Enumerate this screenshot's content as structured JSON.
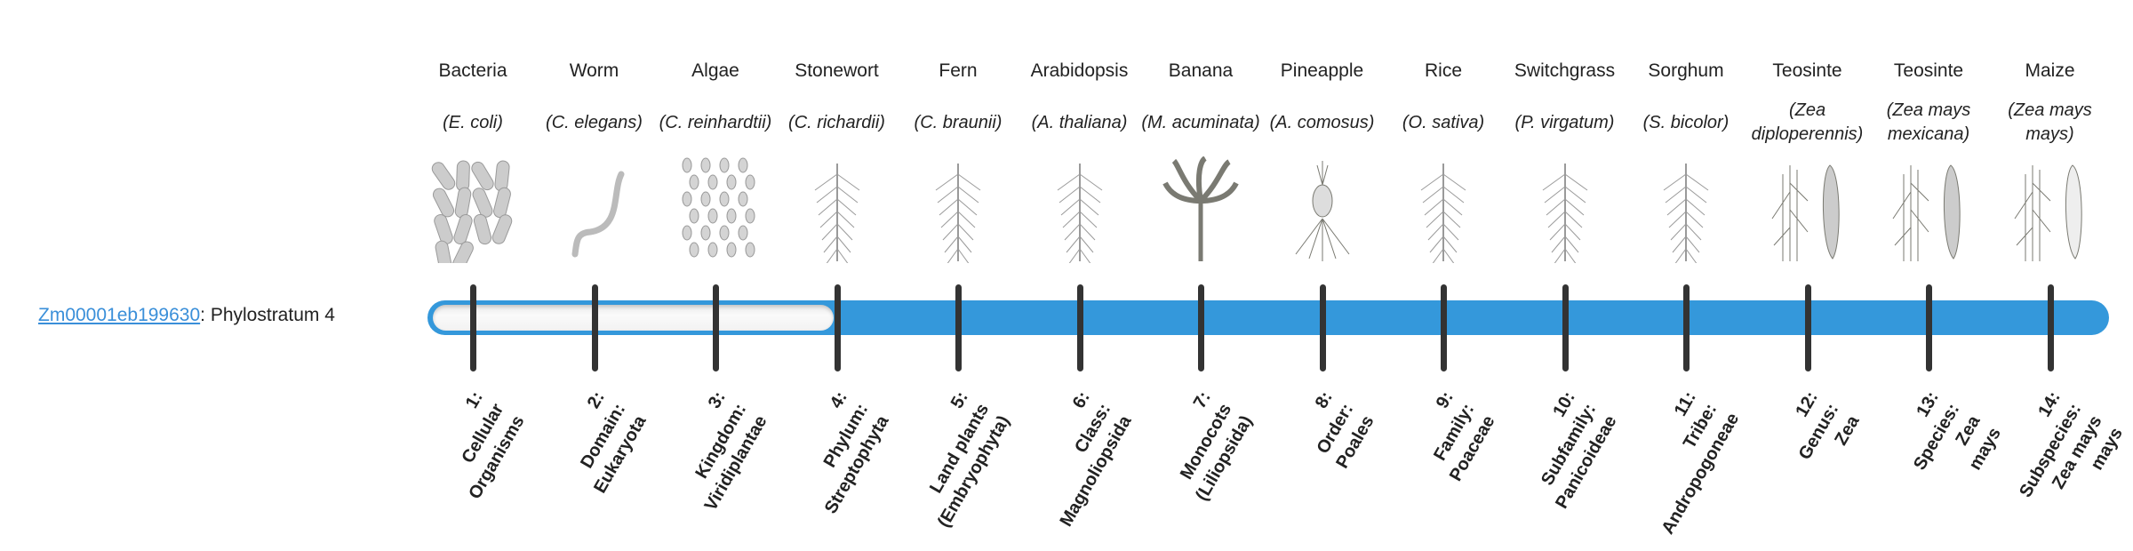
{
  "gene": {
    "id": "Zm00001eb199630",
    "separator": ": ",
    "label": "Phylostratum 4"
  },
  "phylostratum": 4,
  "total_strata": 14,
  "colors": {
    "bar": "#3498db",
    "link": "#3a8fd9",
    "tick": "#333333",
    "empty": "#f4f4f4"
  },
  "strata": [
    {
      "name": "Bacteria",
      "species": "(E. coli)",
      "icon": "bacteria",
      "label": [
        "1:",
        "Cellular",
        "Organisms"
      ]
    },
    {
      "name": "Worm",
      "species": "(C. elegans)",
      "icon": "worm",
      "label": [
        "2:",
        "Domain:",
        "Eukaryota"
      ]
    },
    {
      "name": "Algae",
      "species": "(C. reinhardtii)",
      "icon": "algae",
      "label": [
        "3:",
        "Kingdom:",
        "Viridiplantae"
      ]
    },
    {
      "name": "Stonewort",
      "species": "(C. richardii)",
      "icon": "stonewort",
      "label": [
        "4:",
        "Phylum:",
        "Streptophyta"
      ]
    },
    {
      "name": "Fern",
      "species": "(C. braunii)",
      "icon": "fern",
      "label": [
        "5:",
        "Land plants",
        "(Embryophyta)"
      ]
    },
    {
      "name": "Arabidopsis",
      "species": "(A. thaliana)",
      "icon": "arabidopsis",
      "label": [
        "6:",
        "Class:",
        "Magnoliopsida"
      ]
    },
    {
      "name": "Banana",
      "species": "(M. acuminata)",
      "icon": "banana",
      "label": [
        "7:",
        "Monocots",
        "(Liliopsida)"
      ]
    },
    {
      "name": "Pineapple",
      "species": "(A. comosus)",
      "icon": "pineapple",
      "label": [
        "8:",
        "Order:",
        "Poales"
      ]
    },
    {
      "name": "Rice",
      "species": "(O. sativa)",
      "icon": "rice",
      "label": [
        "9:",
        "Family:",
        "Poaceae"
      ]
    },
    {
      "name": "Switchgrass",
      "species": "(P. virgatum)",
      "icon": "switchgrass",
      "label": [
        "10:",
        "Subfamily:",
        "Panicoideae"
      ]
    },
    {
      "name": "Sorghum",
      "species": "(S. bicolor)",
      "icon": "sorghum",
      "label": [
        "11:",
        "Tribe:",
        "Andropogoneae"
      ]
    },
    {
      "name": "Teosinte",
      "species": "(Zea diploperennis)",
      "icon": "teosinte",
      "label": [
        "12:",
        "Genus:",
        "Zea"
      ]
    },
    {
      "name": "Teosinte",
      "species": "(Zea mays mexicana)",
      "icon": "teosinte",
      "label": [
        "13:",
        "Species:",
        "Zea",
        "mays"
      ]
    },
    {
      "name": "Maize",
      "species": "(Zea mays mays)",
      "icon": "maize",
      "label": [
        "14:",
        "Subspecies:",
        "Zea mays",
        "mays"
      ]
    }
  ]
}
